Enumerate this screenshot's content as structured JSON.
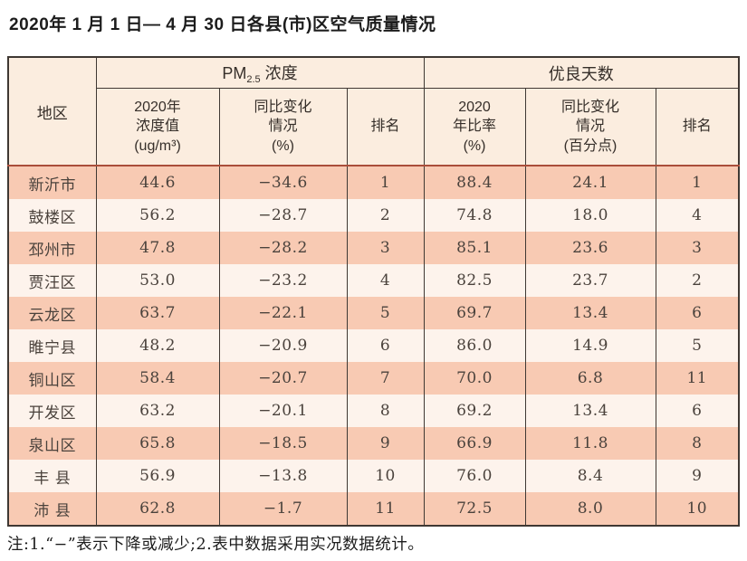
{
  "title": "2020年 1 月 1 日— 4 月 30 日各县(市)区空气质量情况",
  "table": {
    "column_keys": [
      "region",
      "pm-value",
      "pm-change",
      "pm-rank",
      "good-ratio",
      "good-change",
      "good-rank"
    ],
    "headers": {
      "region": "地区",
      "pm_group": {
        "prefix": "PM",
        "sub": "2.5",
        "suffix": "浓度"
      },
      "good_group": "优良天数",
      "pm_value_lines": [
        "2020年",
        "浓度值",
        "(ug/m³)"
      ],
      "pm_change_lines": [
        "同比变化",
        "情况",
        "(%)"
      ],
      "pm_rank": "排名",
      "good_ratio_lines": [
        "2020",
        "年比率",
        "(%)"
      ],
      "good_change_lines": [
        "同比变化",
        "情况",
        "(百分点)"
      ],
      "good_rank": "排名"
    },
    "rows": [
      [
        "新沂市",
        "44.6",
        "−34.6",
        "1",
        "88.4",
        "24.1",
        "1"
      ],
      [
        "鼓楼区",
        "56.2",
        "−28.7",
        "2",
        "74.8",
        "18.0",
        "4"
      ],
      [
        "邳州市",
        "47.8",
        "−28.2",
        "3",
        "85.1",
        "23.6",
        "3"
      ],
      [
        "贾汪区",
        "53.0",
        "−23.2",
        "4",
        "82.5",
        "23.7",
        "2"
      ],
      [
        "云龙区",
        "63.7",
        "−22.1",
        "5",
        "69.7",
        "13.4",
        "6"
      ],
      [
        "睢宁县",
        "48.2",
        "−20.9",
        "6",
        "86.0",
        "14.9",
        "5"
      ],
      [
        "铜山区",
        "58.4",
        "−20.7",
        "7",
        "70.0",
        "6.8",
        "11"
      ],
      [
        "开发区",
        "63.2",
        "−20.1",
        "8",
        "69.2",
        "13.4",
        "6"
      ],
      [
        "泉山区",
        "65.8",
        "−18.5",
        "9",
        "66.9",
        "11.8",
        "8"
      ],
      [
        "丰 县",
        "56.9",
        "−13.8",
        "10",
        "76.0",
        "8.4",
        "9"
      ],
      [
        "沛 县",
        "62.8",
        "−1.7",
        "11",
        "72.5",
        "8.0",
        "10"
      ]
    ]
  },
  "note": "注:1.“−”表示下降或减少;2.表中数据采用实况数据统计。",
  "colors": {
    "row_highlight": "#f8cab3",
    "row_light": "#fdf3ec",
    "header_bg": "#fbeddf",
    "header_rule": "#aa4e3a",
    "table_border": "#3f3833",
    "body_text": "#4a423c",
    "title_text": "#1c1c1c"
  }
}
